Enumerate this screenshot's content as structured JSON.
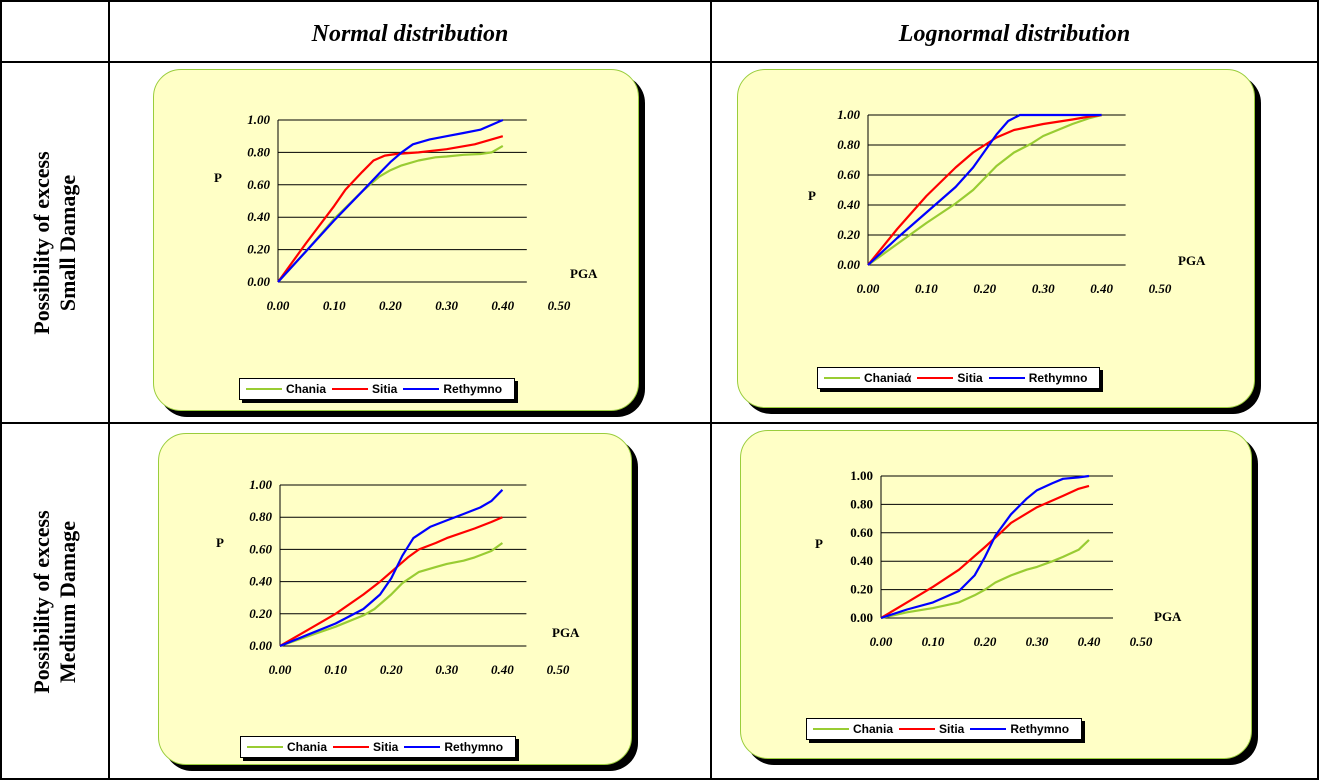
{
  "headers": {
    "col1": "Normal distribution",
    "col2": "Lognormal distribution"
  },
  "rows": {
    "row1": [
      "Possibility of excess",
      "Small Damage"
    ],
    "row2": [
      "Possibility of excess",
      "Medium Damage"
    ]
  },
  "colors": {
    "chania": "#99cc33",
    "sitia": "#ff0000",
    "rethymno": "#0000ff",
    "panel": "#ffffc6"
  },
  "chart_data": [
    {
      "type": "line",
      "title": "",
      "xlabel": "PGA",
      "ylabel": "P",
      "xlim": [
        0,
        0.5
      ],
      "ylim": [
        0,
        1
      ],
      "xticks": [
        "0.00",
        "0.10",
        "0.20",
        "0.30",
        "0.40",
        "0.50"
      ],
      "yticks": [
        "0.00",
        "0.20",
        "0.40",
        "0.60",
        "0.80",
        "1.00"
      ],
      "legend": [
        "Chania",
        "Sitia",
        "Rethymno"
      ],
      "series": [
        {
          "name": "Chania",
          "x": [
            0,
            0.05,
            0.1,
            0.15,
            0.18,
            0.2,
            0.22,
            0.25,
            0.28,
            0.3,
            0.33,
            0.36,
            0.38,
            0.4
          ],
          "y": [
            0,
            0.19,
            0.39,
            0.56,
            0.65,
            0.69,
            0.72,
            0.75,
            0.77,
            0.775,
            0.785,
            0.79,
            0.8,
            0.84
          ]
        },
        {
          "name": "Sitia",
          "x": [
            0,
            0.05,
            0.1,
            0.12,
            0.15,
            0.17,
            0.19,
            0.21,
            0.25,
            0.3,
            0.35,
            0.38,
            0.4
          ],
          "y": [
            0,
            0.24,
            0.47,
            0.57,
            0.68,
            0.75,
            0.78,
            0.79,
            0.8,
            0.82,
            0.85,
            0.88,
            0.9
          ]
        },
        {
          "name": "Rethymno",
          "x": [
            0,
            0.05,
            0.1,
            0.15,
            0.18,
            0.2,
            0.22,
            0.24,
            0.27,
            0.3,
            0.33,
            0.36,
            0.38,
            0.4
          ],
          "y": [
            0,
            0.19,
            0.38,
            0.56,
            0.67,
            0.74,
            0.8,
            0.85,
            0.88,
            0.9,
            0.92,
            0.94,
            0.97,
            1.0
          ]
        }
      ]
    },
    {
      "type": "line",
      "title": "",
      "xlabel": "PGA",
      "ylabel": "P",
      "xlim": [
        0,
        0.5
      ],
      "ylim": [
        0,
        1
      ],
      "xticks": [
        "0.00",
        "0.10",
        "0.20",
        "0.30",
        "0.40",
        "0.50"
      ],
      "yticks": [
        "0.00",
        "0.20",
        "0.40",
        "0.60",
        "0.80",
        "1.00"
      ],
      "legend": [
        "Chaniaά",
        "Sitia",
        "Rethymno"
      ],
      "series": [
        {
          "name": "Chaniaά",
          "x": [
            0,
            0.05,
            0.1,
            0.15,
            0.18,
            0.2,
            0.22,
            0.25,
            0.28,
            0.3,
            0.35,
            0.38,
            0.4
          ],
          "y": [
            0,
            0.14,
            0.28,
            0.41,
            0.5,
            0.58,
            0.66,
            0.75,
            0.81,
            0.86,
            0.94,
            0.98,
            1.0
          ]
        },
        {
          "name": "Sitia",
          "x": [
            0,
            0.05,
            0.1,
            0.15,
            0.18,
            0.2,
            0.22,
            0.25,
            0.3,
            0.35,
            0.38,
            0.4
          ],
          "y": [
            0,
            0.24,
            0.46,
            0.65,
            0.75,
            0.8,
            0.85,
            0.9,
            0.94,
            0.97,
            0.99,
            1.0
          ]
        },
        {
          "name": "Rethymno",
          "x": [
            0,
            0.05,
            0.1,
            0.15,
            0.18,
            0.2,
            0.22,
            0.24,
            0.26,
            0.28,
            0.3,
            0.4
          ],
          "y": [
            0,
            0.18,
            0.35,
            0.52,
            0.65,
            0.76,
            0.87,
            0.96,
            1.0,
            1.0,
            1.0,
            1.0
          ]
        }
      ]
    },
    {
      "type": "line",
      "title": "",
      "xlabel": "PGA",
      "ylabel": "P",
      "xlim": [
        0,
        0.5
      ],
      "ylim": [
        0,
        1
      ],
      "xticks": [
        "0.00",
        "0.10",
        "0.20",
        "0.30",
        "0.40",
        "0.50"
      ],
      "yticks": [
        "0.00",
        "0.20",
        "0.40",
        "0.60",
        "0.80",
        "1.00"
      ],
      "legend": [
        "Chania",
        "Sitia",
        "Rethymno"
      ],
      "series": [
        {
          "name": "Chania",
          "x": [
            0,
            0.05,
            0.1,
            0.15,
            0.17,
            0.2,
            0.22,
            0.25,
            0.28,
            0.3,
            0.33,
            0.35,
            0.38,
            0.4
          ],
          "y": [
            0,
            0.06,
            0.12,
            0.19,
            0.23,
            0.32,
            0.39,
            0.46,
            0.49,
            0.51,
            0.53,
            0.55,
            0.59,
            0.64
          ]
        },
        {
          "name": "Sitia",
          "x": [
            0,
            0.05,
            0.1,
            0.15,
            0.18,
            0.2,
            0.23,
            0.25,
            0.28,
            0.3,
            0.35,
            0.38,
            0.4
          ],
          "y": [
            0,
            0.1,
            0.2,
            0.32,
            0.4,
            0.46,
            0.55,
            0.6,
            0.64,
            0.67,
            0.73,
            0.77,
            0.8
          ]
        },
        {
          "name": "Rethymno",
          "x": [
            0,
            0.05,
            0.1,
            0.15,
            0.18,
            0.2,
            0.22,
            0.24,
            0.27,
            0.3,
            0.33,
            0.36,
            0.38,
            0.4
          ],
          "y": [
            0,
            0.07,
            0.14,
            0.23,
            0.32,
            0.42,
            0.56,
            0.67,
            0.74,
            0.78,
            0.82,
            0.86,
            0.9,
            0.97
          ]
        }
      ]
    },
    {
      "type": "line",
      "title": "",
      "xlabel": "PGA",
      "ylabel": "P",
      "xlim": [
        0,
        0.5
      ],
      "ylim": [
        0,
        1
      ],
      "xticks": [
        "0.00",
        "0.10",
        "0.20",
        "0.30",
        "0.40",
        "0.50"
      ],
      "yticks": [
        "0.00",
        "0.20",
        "0.40",
        "0.60",
        "0.80",
        "1.00"
      ],
      "legend": [
        "Chania",
        "Sitia",
        "Rethymno"
      ],
      "series": [
        {
          "name": "Chania",
          "x": [
            0,
            0.05,
            0.1,
            0.15,
            0.18,
            0.2,
            0.22,
            0.25,
            0.28,
            0.3,
            0.33,
            0.35,
            0.38,
            0.4
          ],
          "y": [
            0,
            0.04,
            0.07,
            0.11,
            0.16,
            0.2,
            0.25,
            0.3,
            0.34,
            0.36,
            0.4,
            0.43,
            0.48,
            0.55
          ]
        },
        {
          "name": "Sitia",
          "x": [
            0,
            0.05,
            0.1,
            0.15,
            0.2,
            0.23,
            0.25,
            0.3,
            0.35,
            0.38,
            0.4
          ],
          "y": [
            0,
            0.11,
            0.22,
            0.34,
            0.5,
            0.6,
            0.67,
            0.78,
            0.86,
            0.91,
            0.93
          ]
        },
        {
          "name": "Rethymno",
          "x": [
            0,
            0.05,
            0.1,
            0.15,
            0.18,
            0.2,
            0.22,
            0.25,
            0.28,
            0.3,
            0.33,
            0.35,
            0.38,
            0.4
          ],
          "y": [
            0,
            0.06,
            0.11,
            0.19,
            0.3,
            0.43,
            0.58,
            0.73,
            0.84,
            0.9,
            0.95,
            0.98,
            0.99,
            1.0
          ]
        }
      ]
    }
  ]
}
